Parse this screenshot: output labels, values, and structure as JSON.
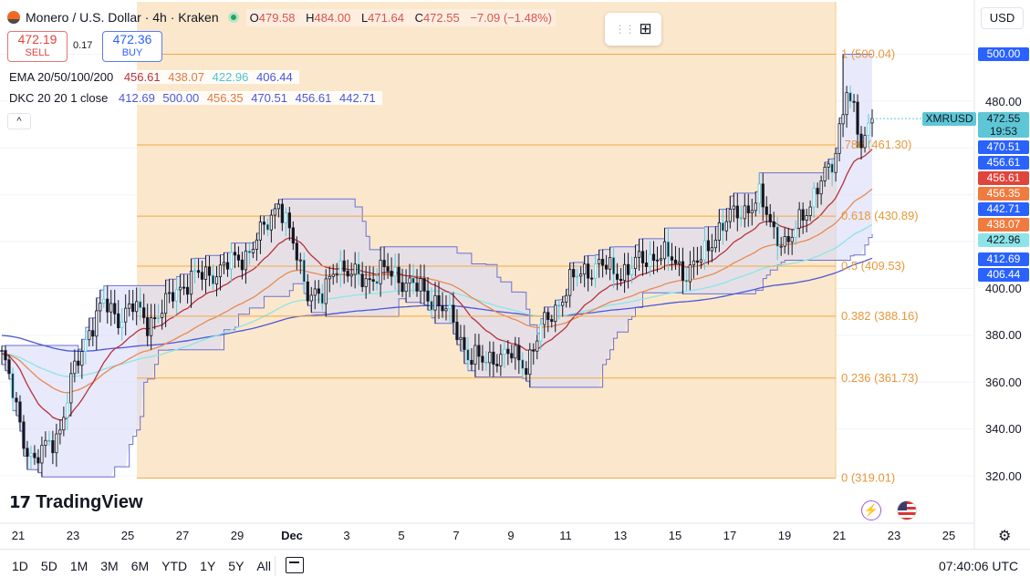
{
  "header": {
    "symbol_title": "Monero / U.S. Dollar · 4h · Kraken",
    "ohlc": [
      {
        "key": "O",
        "value": "479.58"
      },
      {
        "key": "H",
        "value": "484.00"
      },
      {
        "key": "L",
        "value": "471.64"
      },
      {
        "key": "C",
        "value": "472.55"
      }
    ],
    "change": "−7.09 (−1.48%)",
    "currency": "USD"
  },
  "trade": {
    "sell_price": "472.19",
    "sell_label": "SELL",
    "spread": "0.17",
    "buy_price": "472.36",
    "buy_label": "BUY"
  },
  "indicators": {
    "ema_label": "EMA 20/50/100/200",
    "ema_values": [
      "456.61",
      "438.07",
      "422.96",
      "406.44"
    ],
    "dkc_label": "DKC 20 20 1 close",
    "dkc_values": [
      "412.69",
      "500.00",
      "456.35",
      "470.51",
      "456.61",
      "442.71"
    ]
  },
  "price_axis": {
    "ticks": [
      "480.00",
      "400.00",
      "380.00",
      "360.00",
      "340.00",
      "320.00"
    ],
    "badges": [
      {
        "text": "500.00"
      },
      {
        "text": "470.51"
      },
      {
        "text": "456.61"
      },
      {
        "text": "456.61"
      },
      {
        "text": "456.35"
      },
      {
        "text": "442.71"
      },
      {
        "text": "438.07"
      },
      {
        "text": "422.96"
      },
      {
        "text": "412.69"
      },
      {
        "text": "406.44"
      }
    ],
    "symbol_tag": "XMRUSD",
    "last_price": "472.55",
    "countdown": "19:53"
  },
  "time_axis": [
    "21",
    "23",
    "25",
    "27",
    "29",
    "Dec",
    "3",
    "5",
    "7",
    "9",
    "11",
    "13",
    "15",
    "17",
    "19",
    "21",
    "23",
    "25"
  ],
  "timeframes": [
    "1D",
    "5D",
    "1M",
    "3M",
    "6M",
    "YTD",
    "1Y",
    "5Y",
    "All"
  ],
  "clock": "07:40:06 UTC",
  "brand": "TradingView",
  "colors": {
    "up": "#131722",
    "down": "#131722",
    "wick_cyan": "#5ec7d6",
    "fib_fill": "#fbe6c7",
    "fib_line": "#f5a742",
    "channel_fill": "#d8daf6",
    "channel_line": "#6a6fd4",
    "ema20": "#b8313a",
    "ema50": "#e88a4f",
    "ema100": "#8ce4e8",
    "ema200": "#4b57d8",
    "accent_blue": "#2962ff"
  },
  "chart_data": {
    "type": "candlestick",
    "title": "Monero / U.S. Dollar · 4h · Kraken",
    "y_range": [
      315,
      515
    ],
    "fib_levels": [
      {
        "ratio": "1",
        "price": 500.04,
        "label": "1 (500.04)"
      },
      {
        "ratio": "0.786",
        "price": 461.3,
        "label": ".786 (461.30)"
      },
      {
        "ratio": "0.618",
        "price": 430.89,
        "label": "0.618 (430.89)"
      },
      {
        "ratio": "0.5",
        "price": 409.53,
        "label": "0.5 (409.53)"
      },
      {
        "ratio": "0.382",
        "price": 388.16,
        "label": "0.382 (388.16)"
      },
      {
        "ratio": "0.236",
        "price": 361.73,
        "label": "0.236 (361.73)"
      },
      {
        "ratio": "0",
        "price": 319.01,
        "label": "0 (319.01)"
      }
    ],
    "price_anchors": [
      [
        0,
        372
      ],
      [
        3,
        355
      ],
      [
        6,
        336
      ],
      [
        9,
        325
      ],
      [
        12,
        332
      ],
      [
        16,
        340
      ],
      [
        20,
        365
      ],
      [
        24,
        383
      ],
      [
        28,
        393
      ],
      [
        32,
        388
      ],
      [
        36,
        392
      ],
      [
        40,
        386
      ],
      [
        44,
        390
      ],
      [
        48,
        400
      ],
      [
        52,
        404
      ],
      [
        56,
        406
      ],
      [
        60,
        408
      ],
      [
        64,
        412
      ],
      [
        68,
        416
      ],
      [
        72,
        425
      ],
      [
        76,
        438
      ],
      [
        80,
        418
      ],
      [
        84,
        400
      ],
      [
        88,
        395
      ],
      [
        92,
        412
      ],
      [
        96,
        405
      ],
      [
        100,
        404
      ],
      [
        104,
        407
      ],
      [
        108,
        406
      ],
      [
        112,
        402
      ],
      [
        116,
        398
      ],
      [
        120,
        394
      ],
      [
        124,
        385
      ],
      [
        128,
        372
      ],
      [
        132,
        368
      ],
      [
        136,
        372
      ],
      [
        140,
        371
      ],
      [
        144,
        368
      ],
      [
        148,
        382
      ],
      [
        152,
        392
      ],
      [
        156,
        402
      ],
      [
        160,
        408
      ],
      [
        164,
        410
      ],
      [
        168,
        407
      ],
      [
        172,
        408
      ],
      [
        176,
        412
      ],
      [
        180,
        415
      ],
      [
        184,
        412
      ],
      [
        188,
        407
      ],
      [
        192,
        412
      ],
      [
        196,
        424
      ],
      [
        200,
        430
      ],
      [
        204,
        434
      ],
      [
        208,
        438
      ],
      [
        212,
        425
      ],
      [
        216,
        418
      ],
      [
        220,
        432
      ],
      [
        224,
        443
      ],
      [
        228,
        452
      ],
      [
        232,
        486
      ],
      [
        236,
        460
      ],
      [
        240,
        480
      ]
    ]
  }
}
